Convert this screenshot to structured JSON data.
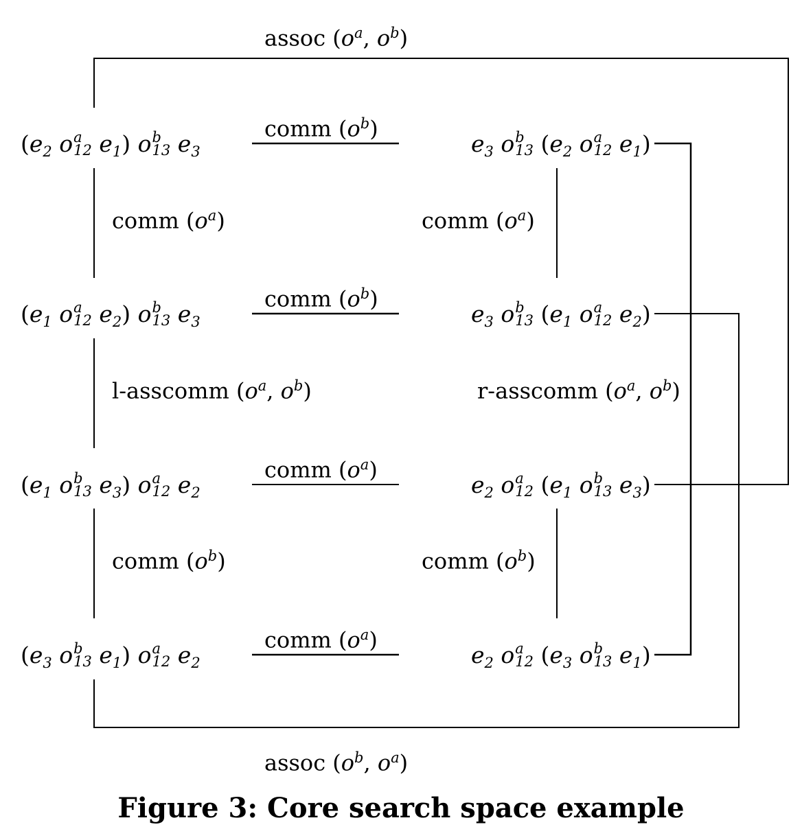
{
  "nodes": [
    {
      "id": "tl1",
      "html": "(<i>e</i><span class=\"sub\">2</span> <i>o</i><span class=\"stack\"><span class=\"sup\">a</span><span class=\"sub\">12</span></span> <i>e</i><span class=\"sub\">1</span>) <i>o</i><span class=\"stack\"><span class=\"sup\">b</span><span class=\"sub\">13</span></span> <i>e</i><span class=\"sub\">3</span>"
    },
    {
      "id": "tr1",
      "html": "<i>e</i><span class=\"sub\">3</span> <i>o</i><span class=\"stack\"><span class=\"sup\">b</span><span class=\"sub\">13</span></span> (<i>e</i><span class=\"sub\">2</span> <i>o</i><span class=\"stack\"><span class=\"sup\">a</span><span class=\"sub\">12</span></span> <i>e</i><span class=\"sub\">1</span>)"
    },
    {
      "id": "tl2",
      "html": "(<i>e</i><span class=\"sub\">1</span> <i>o</i><span class=\"stack\"><span class=\"sup\">a</span><span class=\"sub\">12</span></span> <i>e</i><span class=\"sub\">2</span>) <i>o</i><span class=\"stack\"><span class=\"sup\">b</span><span class=\"sub\">13</span></span> <i>e</i><span class=\"sub\">3</span>"
    },
    {
      "id": "tr2",
      "html": "<i>e</i><span class=\"sub\">3</span> <i>o</i><span class=\"stack\"><span class=\"sup\">b</span><span class=\"sub\">13</span></span> (<i>e</i><span class=\"sub\">1</span> <i>o</i><span class=\"stack\"><span class=\"sup\">a</span><span class=\"sub\">12</span></span> <i>e</i><span class=\"sub\">2</span>)"
    },
    {
      "id": "tl3",
      "html": "(<i>e</i><span class=\"sub\">1</span> <i>o</i><span class=\"stack\"><span class=\"sup\">b</span><span class=\"sub\">13</span></span> <i>e</i><span class=\"sub\">3</span>) <i>o</i><span class=\"stack\"><span class=\"sup\">a</span><span class=\"sub\">12</span></span> <i>e</i><span class=\"sub\">2</span>"
    },
    {
      "id": "tr3",
      "html": "<i>e</i><span class=\"sub\">2</span> <i>o</i><span class=\"stack\"><span class=\"sup\">a</span><span class=\"sub\">12</span></span> (<i>e</i><span class=\"sub\">1</span> <i>o</i><span class=\"stack\"><span class=\"sup\">b</span><span class=\"sub\">13</span></span> <i>e</i><span class=\"sub\">3</span>)"
    },
    {
      "id": "tl4",
      "html": "(<i>e</i><span class=\"sub\">3</span> <i>o</i><span class=\"stack\"><span class=\"sup\">b</span><span class=\"sub\">13</span></span> <i>e</i><span class=\"sub\">1</span>) <i>o</i><span class=\"stack\"><span class=\"sup\">a</span><span class=\"sub\">12</span></span> <i>e</i><span class=\"sub\">2</span>"
    },
    {
      "id": "tr4",
      "html": "<i>e</i><span class=\"sub\">2</span> <i>o</i><span class=\"stack\"><span class=\"sup\">a</span><span class=\"sub\">12</span></span> (<i>e</i><span class=\"sub\">3</span> <i>o</i><span class=\"stack\"><span class=\"sup\">b</span><span class=\"sub\">13</span></span> <i>e</i><span class=\"sub\">1</span>)"
    }
  ],
  "rules": {
    "assoc_top": "assoc (o<sup>a</sup>, o<sup>b</sup>)",
    "comm_h1": "comm (o<sup>b</sup>)",
    "comm_h2": "comm (o<sup>b</sup>)",
    "comm_h3": "comm (o<sup>a</sup>)",
    "comm_h4": "comm (o<sup>a</sup>)",
    "comm_vl1": "comm (o<sup>a</sup>)",
    "comm_vr1": "comm (o<sup>a</sup>)",
    "lasscomm": "l-asscomm (o<sup>a</sup>, o<sup>b</sup>)",
    "rasscomm": "r-asscomm (o<sup>a</sup>, o<sup>b</sup>)",
    "comm_vl3": "comm (o<sup>b</sup>)",
    "comm_vr3": "comm (o<sup>b</sup>)",
    "assoc_bottom": "assoc (o<sup>b</sup>, o<sup>a</sup>)"
  },
  "caption": "Figure 3:  Core search space example"
}
